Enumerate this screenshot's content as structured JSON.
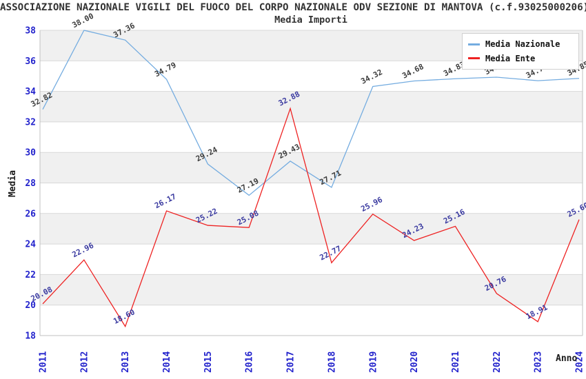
{
  "title": "ASSOCIAZIONE NAZIONALE VIGILI DEL FUOCO DEL CORPO NAZIONALE ODV SEZIONE DI MANTOVA (c.f.93025000206)",
  "subtitle": "Media Importi",
  "colors": {
    "band": "#F0F0F0",
    "grid": "#D8D8D8",
    "spine": "#C0C0C0",
    "tick_label": "#2222CC",
    "axis_title": "#1A1A1A",
    "legend_border": "#D0D0D0"
  },
  "legend": {
    "position": "top-right"
  },
  "chart_data": {
    "type": "line",
    "title": "ASSOCIAZIONE NAZIONALE VIGILI DEL FUOCO DEL CORPO NAZIONALE ODV SEZIONE DI MANTOVA (c.f.93025000206)",
    "subtitle": "Media Importi",
    "xlabel": "Anno",
    "ylabel": "Media",
    "ylim": [
      18,
      38
    ],
    "ytick_step": 2,
    "grid": true,
    "bands": true,
    "legend_position": "top-right",
    "categories": [
      "2011",
      "2012",
      "2013",
      "2014",
      "2015",
      "2016",
      "2017",
      "2018",
      "2019",
      "2020",
      "2021",
      "2022",
      "2023",
      "2024"
    ],
    "series": [
      {
        "name": "Media Nazionale",
        "color": "#74ACE0",
        "label_color": "#3C3C3C",
        "values": [
          32.82,
          38.0,
          37.36,
          34.79,
          29.24,
          27.19,
          29.43,
          27.71,
          34.32,
          34.68,
          34.83,
          34.93,
          34.7,
          34.85
        ]
      },
      {
        "name": "Media Ente",
        "color": "#EE2222",
        "label_color": "#3A3AA0",
        "values": [
          20.08,
          22.96,
          18.6,
          26.17,
          25.22,
          25.08,
          32.88,
          22.77,
          25.96,
          24.23,
          25.16,
          20.76,
          18.91,
          25.6
        ]
      }
    ]
  }
}
